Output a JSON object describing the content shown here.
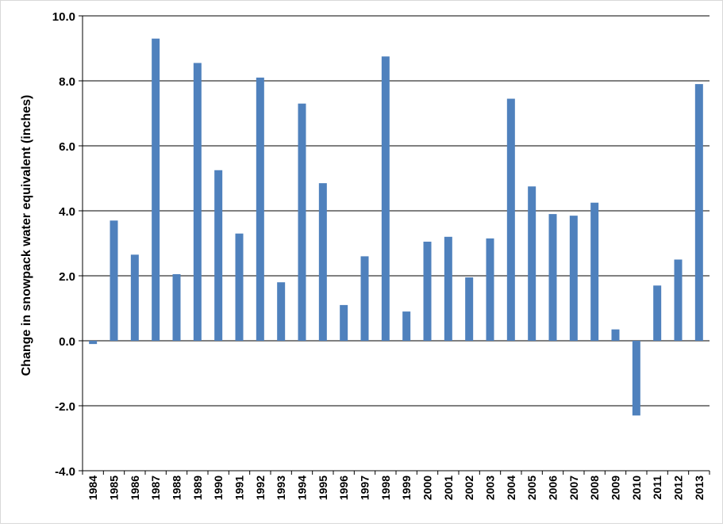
{
  "chart_data": {
    "type": "bar",
    "title": "",
    "xlabel": "",
    "ylabel": "Change in snowpack water equivalent (inches)",
    "ylim": [
      -4.0,
      10.0
    ],
    "yticks": [
      "10.0",
      "8.0",
      "6.0",
      "4.0",
      "2.0",
      "0.0",
      "-2.0",
      "-4.0"
    ],
    "ytick_values": [
      10,
      8,
      6,
      4,
      2,
      0,
      -2,
      -4
    ],
    "grid": true,
    "legend": "none",
    "bar_color": "#4f81bd",
    "categories": [
      "1984",
      "1985",
      "1986",
      "1987",
      "1988",
      "1989",
      "1990",
      "1991",
      "1992",
      "1993",
      "1994",
      "1995",
      "1996",
      "1997",
      "1998",
      "1999",
      "2000",
      "2001",
      "2002",
      "2003",
      "2004",
      "2005",
      "2006",
      "2007",
      "2008",
      "2009",
      "2010",
      "2011",
      "2012",
      "2013"
    ],
    "values": [
      -0.1,
      3.7,
      2.65,
      9.3,
      2.05,
      8.55,
      5.25,
      3.3,
      8.1,
      1.8,
      7.3,
      4.85,
      1.1,
      2.6,
      8.75,
      0.9,
      3.05,
      3.2,
      1.95,
      3.15,
      7.45,
      4.75,
      3.9,
      3.85,
      4.25,
      0.35,
      -2.3,
      1.7,
      2.5,
      7.9
    ]
  }
}
